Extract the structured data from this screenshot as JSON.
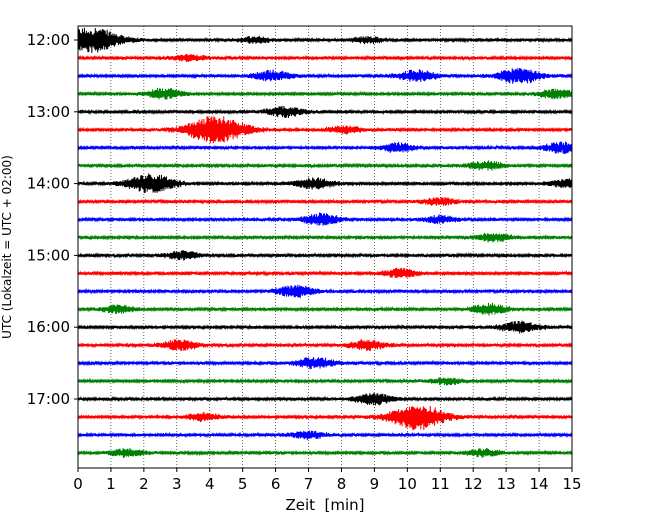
{
  "chart_data": {
    "type": "line",
    "title": "",
    "xlabel": "Zeit  [min]",
    "ylabel": "UTC (Lokalzeit = UTC + 02:00)",
    "x_ticks": [
      0,
      1,
      2,
      3,
      4,
      5,
      6,
      7,
      8,
      9,
      10,
      11,
      12,
      13,
      14,
      15
    ],
    "xlim": [
      0,
      15
    ],
    "y_tick_labels": [
      "12:00",
      "13:00",
      "14:00",
      "15:00",
      "16:00",
      "17:00"
    ],
    "grid": "vertical dotted at each minute",
    "line_start_utc": "12:00",
    "line_interval_min": 15,
    "line_count": 24,
    "colors": [
      "#000000",
      "#ff0000",
      "#0000ff",
      "#008000"
    ],
    "events": [
      {
        "line": 0,
        "x_min": 0.4,
        "amplitude": 1.0
      },
      {
        "line": 0,
        "x_min": 5.4,
        "amplitude": 0.25
      },
      {
        "line": 0,
        "x_min": 8.8,
        "amplitude": 0.25
      },
      {
        "line": 1,
        "x_min": 3.4,
        "amplitude": 0.25
      },
      {
        "line": 2,
        "x_min": 5.9,
        "amplitude": 0.4
      },
      {
        "line": 2,
        "x_min": 10.3,
        "amplitude": 0.45
      },
      {
        "line": 2,
        "x_min": 13.4,
        "amplitude": 0.6
      },
      {
        "line": 3,
        "x_min": 2.6,
        "amplitude": 0.4
      },
      {
        "line": 3,
        "x_min": 14.5,
        "amplitude": 0.35
      },
      {
        "line": 4,
        "x_min": 6.3,
        "amplitude": 0.4
      },
      {
        "line": 5,
        "x_min": 4.2,
        "amplitude": 1.1
      },
      {
        "line": 5,
        "x_min": 8.1,
        "amplitude": 0.3
      },
      {
        "line": 6,
        "x_min": 9.7,
        "amplitude": 0.35
      },
      {
        "line": 6,
        "x_min": 14.7,
        "amplitude": 0.4
      },
      {
        "line": 7,
        "x_min": 12.4,
        "amplitude": 0.35
      },
      {
        "line": 8,
        "x_min": 2.2,
        "amplitude": 0.75
      },
      {
        "line": 8,
        "x_min": 7.2,
        "amplitude": 0.45
      },
      {
        "line": 8,
        "x_min": 14.9,
        "amplitude": 0.35
      },
      {
        "line": 9,
        "x_min": 11.0,
        "amplitude": 0.3
      },
      {
        "line": 10,
        "x_min": 7.4,
        "amplitude": 0.45
      },
      {
        "line": 10,
        "x_min": 11.0,
        "amplitude": 0.3
      },
      {
        "line": 11,
        "x_min": 12.6,
        "amplitude": 0.35
      },
      {
        "line": 12,
        "x_min": 3.2,
        "amplitude": 0.3
      },
      {
        "line": 13,
        "x_min": 9.8,
        "amplitude": 0.35
      },
      {
        "line": 14,
        "x_min": 6.6,
        "amplitude": 0.45
      },
      {
        "line": 15,
        "x_min": 1.2,
        "amplitude": 0.3
      },
      {
        "line": 15,
        "x_min": 12.5,
        "amplitude": 0.4
      },
      {
        "line": 16,
        "x_min": 13.4,
        "amplitude": 0.45
      },
      {
        "line": 17,
        "x_min": 3.1,
        "amplitude": 0.4
      },
      {
        "line": 17,
        "x_min": 8.8,
        "amplitude": 0.4
      },
      {
        "line": 18,
        "x_min": 7.2,
        "amplitude": 0.45
      },
      {
        "line": 19,
        "x_min": 11.2,
        "amplitude": 0.25
      },
      {
        "line": 20,
        "x_min": 9.0,
        "amplitude": 0.45
      },
      {
        "line": 21,
        "x_min": 10.3,
        "amplitude": 1.0
      },
      {
        "line": 21,
        "x_min": 3.8,
        "amplitude": 0.3
      },
      {
        "line": 22,
        "x_min": 7.0,
        "amplitude": 0.3
      },
      {
        "line": 23,
        "x_min": 1.5,
        "amplitude": 0.3
      },
      {
        "line": 23,
        "x_min": 12.3,
        "amplitude": 0.3
      }
    ]
  }
}
